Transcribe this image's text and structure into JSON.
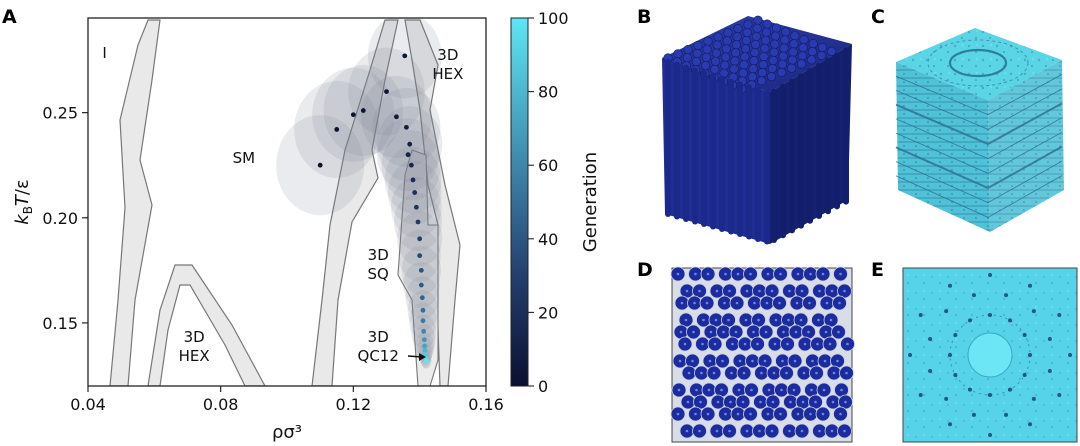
{
  "panels": {
    "a": "A",
    "b": "B",
    "c": "C",
    "d": "D",
    "e": "E"
  },
  "chart_data": {
    "type": "scatter",
    "xlabel": "ρσ³",
    "ylabel": "k_B T/ε",
    "xlim": [
      0.04,
      0.16
    ],
    "ylim": [
      0.12,
      0.295
    ],
    "xticks": [
      0.04,
      0.08,
      0.12,
      0.16
    ],
    "xtick_labels": [
      "0.04",
      "0.08",
      "0.12",
      "0.16"
    ],
    "yticks": [
      0.15,
      0.2,
      0.25
    ],
    "ytick_labels": [
      "0.15",
      "0.20",
      "0.25"
    ],
    "grid": false,
    "colorbar": {
      "label": "Generation",
      "min": 0,
      "max": 100,
      "ticks": [
        0,
        20,
        40,
        60,
        80,
        100
      ],
      "tick_labels": [
        "0",
        "20",
        "40",
        "60",
        "80",
        "100"
      ],
      "color_low": "#0b1030",
      "color_high": "#5de6f5"
    },
    "phase_labels": [
      {
        "id": "i",
        "text": "I",
        "x": 0.045,
        "y": 0.276
      },
      {
        "id": "sm",
        "text": "SM",
        "x": 0.087,
        "y": 0.226
      },
      {
        "id": "hex-top",
        "text": "3D",
        "text2": "HEX",
        "x": 0.1485,
        "y": 0.275
      },
      {
        "id": "sq",
        "text": "3D",
        "text2": "SQ",
        "x": 0.1275,
        "y": 0.18
      },
      {
        "id": "hex-bottom",
        "text": "3D",
        "text2": "HEX",
        "x": 0.072,
        "y": 0.141
      },
      {
        "id": "qc12",
        "text": "3D",
        "text2": "QC12",
        "x": 0.1275,
        "y": 0.141
      }
    ],
    "points": [
      {
        "gen": 0,
        "x": 0.11,
        "y": 0.225
      },
      {
        "gen": 1,
        "x": 0.115,
        "y": 0.242
      },
      {
        "gen": 2,
        "x": 0.12,
        "y": 0.249
      },
      {
        "gen": 3,
        "x": 0.123,
        "y": 0.251
      },
      {
        "gen": 4,
        "x": 0.13,
        "y": 0.26
      },
      {
        "gen": 5,
        "x": 0.1355,
        "y": 0.277
      },
      {
        "gen": 6,
        "x": 0.133,
        "y": 0.248
      },
      {
        "gen": 8,
        "x": 0.136,
        "y": 0.243
      },
      {
        "gen": 10,
        "x": 0.137,
        "y": 0.235
      },
      {
        "gen": 12,
        "x": 0.1365,
        "y": 0.23
      },
      {
        "gen": 15,
        "x": 0.1375,
        "y": 0.225
      },
      {
        "gen": 18,
        "x": 0.138,
        "y": 0.218
      },
      {
        "gen": 20,
        "x": 0.1385,
        "y": 0.212
      },
      {
        "gen": 23,
        "x": 0.139,
        "y": 0.205
      },
      {
        "gen": 26,
        "x": 0.1395,
        "y": 0.198
      },
      {
        "gen": 30,
        "x": 0.14,
        "y": 0.19
      },
      {
        "gen": 34,
        "x": 0.14,
        "y": 0.182
      },
      {
        "gen": 38,
        "x": 0.1405,
        "y": 0.175
      },
      {
        "gen": 42,
        "x": 0.1405,
        "y": 0.168
      },
      {
        "gen": 46,
        "x": 0.1408,
        "y": 0.162
      },
      {
        "gen": 50,
        "x": 0.141,
        "y": 0.156
      },
      {
        "gen": 55,
        "x": 0.141,
        "y": 0.151
      },
      {
        "gen": 60,
        "x": 0.1412,
        "y": 0.146
      },
      {
        "gen": 66,
        "x": 0.1414,
        "y": 0.142
      },
      {
        "gen": 72,
        "x": 0.1415,
        "y": 0.139
      },
      {
        "gen": 80,
        "x": 0.1416,
        "y": 0.137
      },
      {
        "gen": 88,
        "x": 0.1417,
        "y": 0.135
      },
      {
        "gen": 95,
        "x": 0.1418,
        "y": 0.133
      },
      {
        "gen": 100,
        "x": 0.142,
        "y": 0.132
      }
    ]
  }
}
